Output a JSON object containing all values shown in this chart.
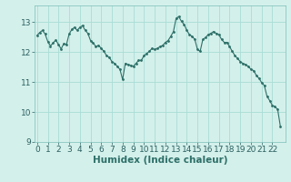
{
  "title": "",
  "xlabel": "Humidex (Indice chaleur)",
  "ylabel": "",
  "background_color": "#d4f0eb",
  "grid_color": "#a8ddd5",
  "line_color": "#2d7068",
  "xlim": [
    -0.2,
    23.2
  ],
  "ylim": [
    9.0,
    13.55
  ],
  "yticks": [
    9,
    10,
    11,
    12,
    13
  ],
  "xticks": [
    0,
    1,
    2,
    3,
    4,
    5,
    6,
    7,
    8,
    9,
    10,
    11,
    12,
    13,
    14,
    15,
    16,
    17,
    18,
    19,
    20,
    21,
    22
  ],
  "x": [
    0,
    0.25,
    0.5,
    0.75,
    1.0,
    1.25,
    1.5,
    1.75,
    2.0,
    2.25,
    2.5,
    2.75,
    3.0,
    3.25,
    3.5,
    3.75,
    4.0,
    4.25,
    4.5,
    4.75,
    5.0,
    5.25,
    5.5,
    5.75,
    6.0,
    6.25,
    6.5,
    6.75,
    7.0,
    7.25,
    7.5,
    7.75,
    8.0,
    8.25,
    8.5,
    8.75,
    9.0,
    9.25,
    9.5,
    9.75,
    10.0,
    10.25,
    10.5,
    10.75,
    11.0,
    11.25,
    11.5,
    11.75,
    12.0,
    12.25,
    12.5,
    12.75,
    13.0,
    13.25,
    13.5,
    13.75,
    14.0,
    14.25,
    14.5,
    14.75,
    15.0,
    15.25,
    15.5,
    15.75,
    16.0,
    16.25,
    16.5,
    16.75,
    17.0,
    17.25,
    17.5,
    17.75,
    18.0,
    18.25,
    18.5,
    18.75,
    19.0,
    19.25,
    19.5,
    19.75,
    20.0,
    20.25,
    20.5,
    20.75,
    21.0,
    21.25,
    21.5,
    21.75,
    22.0,
    22.25,
    22.5,
    22.75
  ],
  "y": [
    12.55,
    12.65,
    12.72,
    12.6,
    12.35,
    12.2,
    12.3,
    12.4,
    12.25,
    12.1,
    12.28,
    12.25,
    12.6,
    12.75,
    12.82,
    12.72,
    12.82,
    12.88,
    12.72,
    12.62,
    12.38,
    12.3,
    12.18,
    12.22,
    12.12,
    12.02,
    11.88,
    11.82,
    11.68,
    11.62,
    11.52,
    11.42,
    11.08,
    11.62,
    11.58,
    11.55,
    11.52,
    11.62,
    11.72,
    11.72,
    11.88,
    11.95,
    12.02,
    12.12,
    12.08,
    12.12,
    12.18,
    12.22,
    12.32,
    12.38,
    12.52,
    12.68,
    13.12,
    13.18,
    13.02,
    12.92,
    12.72,
    12.58,
    12.52,
    12.42,
    12.08,
    12.02,
    12.42,
    12.48,
    12.58,
    12.62,
    12.68,
    12.62,
    12.58,
    12.42,
    12.32,
    12.32,
    12.18,
    12.02,
    11.88,
    11.78,
    11.68,
    11.62,
    11.58,
    11.52,
    11.42,
    11.38,
    11.22,
    11.12,
    10.98,
    10.88,
    10.52,
    10.38,
    10.22,
    10.18,
    10.08,
    9.52
  ],
  "marker": ".",
  "markersize": 2,
  "linewidth": 0.8,
  "tick_fontsize": 6.5,
  "xlabel_fontsize": 7.5
}
